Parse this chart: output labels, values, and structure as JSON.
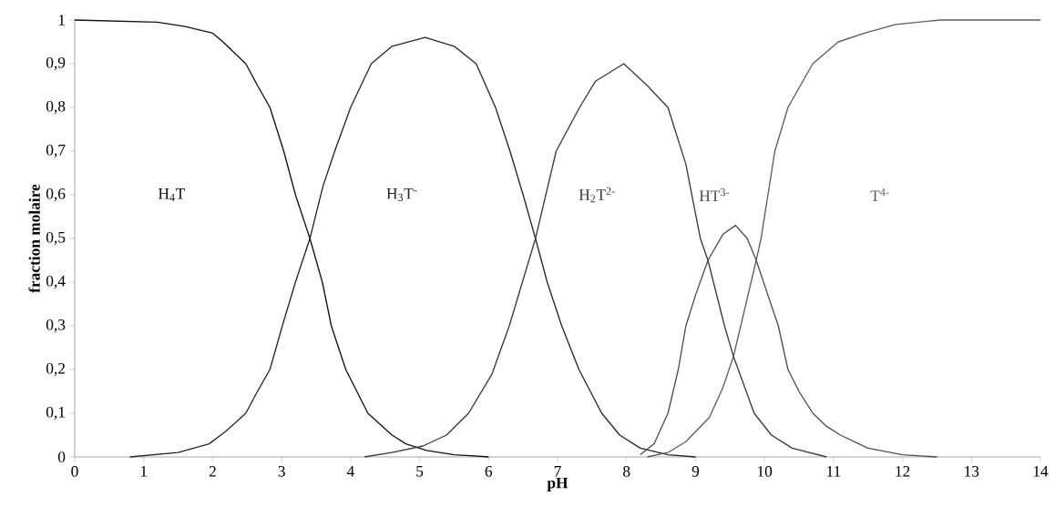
{
  "chart_data": {
    "type": "line",
    "xlabel": "pH",
    "ylabel": "fraction molaire",
    "marker": "none",
    "line_style": "solid",
    "xlim": [
      0,
      14
    ],
    "ylim": [
      0,
      1
    ],
    "xticks": [
      0,
      1,
      2,
      3,
      4,
      5,
      6,
      7,
      8,
      9,
      10,
      11,
      12,
      13,
      14
    ],
    "yticks": [
      0,
      {
        "value": 0.1,
        "label": "0,1"
      },
      {
        "value": 0.2,
        "label": "0,2"
      },
      {
        "value": 0.3,
        "label": "0,3"
      },
      {
        "value": 0.4,
        "label": "0,4"
      },
      {
        "value": 0.5,
        "label": "0,5"
      },
      {
        "value": 0.6,
        "label": "0,6"
      },
      {
        "value": 0.7,
        "label": "0,7"
      },
      {
        "value": 0.8,
        "label": "0,8"
      },
      {
        "value": 0.9,
        "label": "0,9"
      },
      1
    ],
    "series": [
      {
        "name": "H$_{4}$T",
        "color": "#111111",
        "x": [
          0,
          1.2,
          1.6,
          2.0,
          2.15,
          2.48,
          2.65,
          2.83,
          3.03,
          3.2,
          3.41,
          3.59,
          3.72,
          3.93,
          4.25,
          4.6,
          4.8,
          5.1,
          5.5,
          6.0
        ],
        "values": [
          1,
          0.995,
          0.985,
          0.97,
          0.95,
          0.9,
          0.85,
          0.8,
          0.7,
          0.6,
          0.5,
          0.4,
          0.3,
          0.2,
          0.1,
          0.05,
          0.03,
          0.015,
          0.005,
          0
        ]
      },
      {
        "name": "H$_{3}$T$^{-}$",
        "color": "#262626",
        "x": [
          0.8,
          1.5,
          1.95,
          2.2,
          2.48,
          2.65,
          2.83,
          3.01,
          3.2,
          3.41,
          3.6,
          3.77,
          4.0,
          4.3,
          4.6,
          5.08,
          5.5,
          5.82,
          6.1,
          6.31,
          6.5,
          6.68,
          6.85,
          7.06,
          7.31,
          7.64,
          7.9,
          8.2,
          8.6,
          9.0
        ],
        "values": [
          0,
          0.01,
          0.03,
          0.06,
          0.1,
          0.15,
          0.2,
          0.3,
          0.4,
          0.5,
          0.62,
          0.7,
          0.8,
          0.9,
          0.94,
          0.96,
          0.94,
          0.9,
          0.8,
          0.7,
          0.6,
          0.5,
          0.4,
          0.3,
          0.2,
          0.1,
          0.05,
          0.02,
          0.005,
          0
        ]
      },
      {
        "name": "H$_{2}$T$^{2-}$",
        "color": "#3a3a3a",
        "x": [
          4.2,
          4.6,
          5.05,
          5.39,
          5.71,
          6.05,
          6.3,
          6.68,
          6.98,
          7.32,
          7.55,
          7.96,
          8.3,
          8.6,
          8.86,
          9.07,
          9.18,
          9.42,
          9.55,
          9.85,
          10.1,
          10.4,
          10.9
        ],
        "values": [
          0,
          0.01,
          0.025,
          0.05,
          0.1,
          0.19,
          0.3,
          0.5,
          0.7,
          0.8,
          0.86,
          0.9,
          0.85,
          0.8,
          0.67,
          0.5,
          0.45,
          0.3,
          0.23,
          0.1,
          0.05,
          0.02,
          0
        ]
      },
      {
        "name": "HT$^{3-}$",
        "color": "#4d4d4d",
        "x": [
          8.2,
          8.4,
          8.6,
          8.75,
          8.86,
          9.0,
          9.18,
          9.4,
          9.58,
          9.75,
          9.88,
          10.05,
          10.2,
          10.34,
          10.5,
          10.7,
          10.9,
          11.1,
          11.5,
          12.0,
          12.5
        ],
        "values": [
          0.005,
          0.03,
          0.1,
          0.2,
          0.3,
          0.37,
          0.45,
          0.51,
          0.53,
          0.5,
          0.45,
          0.37,
          0.3,
          0.2,
          0.15,
          0.1,
          0.07,
          0.05,
          0.02,
          0.005,
          0
        ]
      },
      {
        "name": "T$^{4-}$",
        "color": "#5c5c5c",
        "x": [
          8.3,
          8.6,
          8.86,
          9.2,
          9.4,
          9.55,
          9.88,
          9.95,
          10.15,
          10.34,
          10.7,
          11.07,
          11.45,
          11.9,
          12.55,
          14
        ],
        "values": [
          0,
          0.01,
          0.035,
          0.09,
          0.16,
          0.23,
          0.45,
          0.5,
          0.7,
          0.8,
          0.9,
          0.95,
          0.97,
          0.99,
          1,
          1
        ]
      }
    ]
  }
}
